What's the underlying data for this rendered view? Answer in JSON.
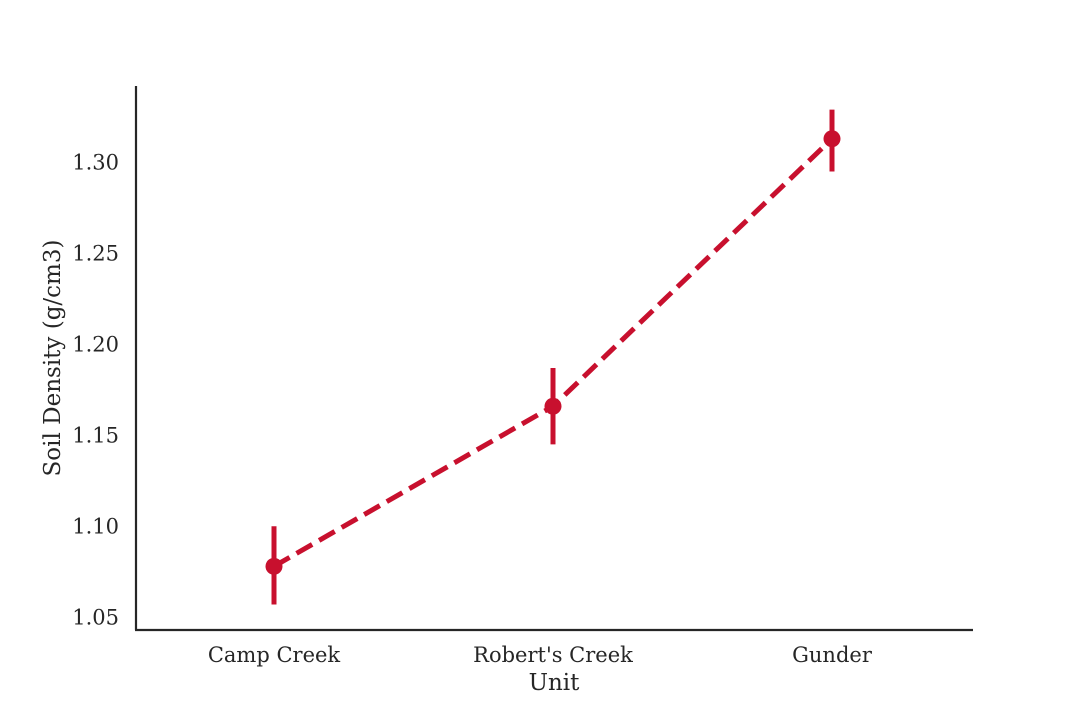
{
  "chart_data": {
    "type": "line",
    "title": "",
    "xlabel": "Unit",
    "ylabel": "Soil Density (g/cm3)",
    "categories": [
      "Camp Creek",
      "Robert's Creek",
      "Gunder"
    ],
    "series": [
      {
        "values": [
          1.078,
          1.166,
          1.313
        ],
        "ci_low": [
          1.057,
          1.145,
          1.295
        ],
        "ci_high": [
          1.1,
          1.187,
          1.329
        ],
        "color": "#C8102E",
        "line_style": "dashed",
        "marker": "circle"
      }
    ],
    "ylim": [
      1.043,
      1.342
    ],
    "yticks": [
      1.05,
      1.1,
      1.15,
      1.2,
      1.25,
      1.3
    ],
    "ytick_labels": [
      "1.05",
      "1.10",
      "1.15",
      "1.20",
      "1.25",
      "1.30"
    ],
    "grid": false,
    "legend": "none"
  }
}
